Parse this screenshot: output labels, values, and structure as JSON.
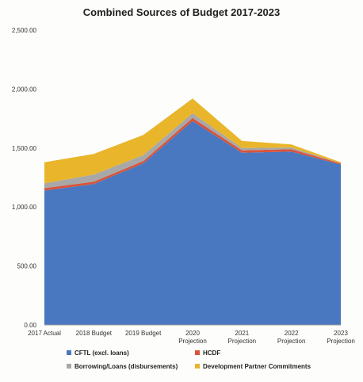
{
  "chart_data": {
    "type": "area",
    "title": "Combined Sources of Budget 2017-2023",
    "xlabel": "",
    "ylabel": "",
    "categories": [
      [
        "2017 Actual"
      ],
      [
        "2018 Budget"
      ],
      [
        "2019 Budget"
      ],
      [
        "2020",
        "Projection"
      ],
      [
        "2021",
        "Projection"
      ],
      [
        "2022",
        "Projection"
      ],
      [
        "2023",
        "Projection"
      ]
    ],
    "ylim": [
      0,
      2500
    ],
    "yticks": [
      0,
      500,
      1000,
      1500,
      2000,
      2500
    ],
    "ytick_labels": [
      "0.00",
      "500.00",
      "1,000.00",
      "1,500.00",
      "2,000.00",
      "2,500.00"
    ],
    "stacked": true,
    "grid": false,
    "legend_position": "bottom",
    "series": [
      {
        "name": "CFTL (excl. loans)",
        "color": "#4a78c0",
        "values": [
          1140,
          1195,
          1370,
          1730,
          1460,
          1470,
          1360
        ]
      },
      {
        "name": "HCDF",
        "color": "#d9533a",
        "values": [
          20,
          20,
          20,
          25,
          20,
          20,
          10
        ]
      },
      {
        "name": "Borrowing/Loans (disbursements)",
        "color": "#a8a8a8",
        "values": [
          40,
          60,
          50,
          40,
          20,
          15,
          0
        ]
      },
      {
        "name": "Development Partner Commitments",
        "color": "#e9b52a",
        "values": [
          180,
          175,
          170,
          125,
          60,
          25,
          10
        ]
      }
    ]
  }
}
